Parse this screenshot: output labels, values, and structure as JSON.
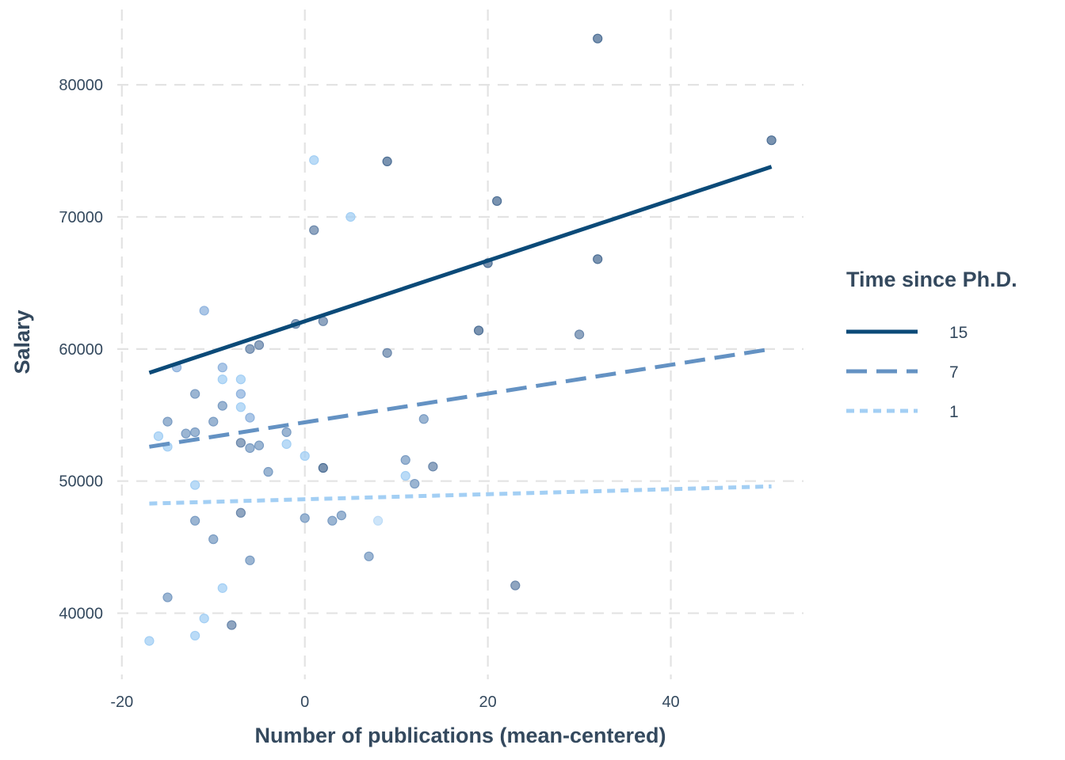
{
  "chart_data": {
    "type": "scatter",
    "title": "",
    "xlabel": "Number of publications (mean-centered)",
    "ylabel": "Salary",
    "xlim": [
      -20.5,
      54.5
    ],
    "ylim": [
      35000,
      85700
    ],
    "x_ticks": [
      -20,
      0,
      20,
      40
    ],
    "x_tick_labels": [
      "-20",
      "0",
      "20",
      "40"
    ],
    "y_ticks": [
      40000,
      50000,
      60000,
      70000,
      80000
    ],
    "y_tick_labels": [
      "40000",
      "50000",
      "60000",
      "70000",
      "80000"
    ],
    "grid": true,
    "legend": {
      "title": "Time since Ph.D.",
      "placement": "right",
      "entries": [
        {
          "label": "15",
          "color": "#0b4a78",
          "dash": "solid"
        },
        {
          "label": "7",
          "color": "#6492c3",
          "dash": "longdash"
        },
        {
          "label": "1",
          "color": "#a3cff4",
          "dash": "dotted"
        }
      ]
    },
    "lines": [
      {
        "name": "15",
        "color": "#0b4a78",
        "dash": "solid",
        "x": [
          -17,
          51
        ],
        "y": [
          58200,
          73800
        ]
      },
      {
        "name": "7",
        "color": "#6492c3",
        "dash": "longdash",
        "x": [
          -17,
          51
        ],
        "y": [
          52600,
          60000
        ]
      },
      {
        "name": "1",
        "color": "#a3cff4",
        "dash": "dotted",
        "x": [
          -17,
          51
        ],
        "y": [
          48300,
          49600
        ]
      }
    ],
    "points": [
      {
        "x": 32,
        "y": 83500,
        "color": "#4d6f95"
      },
      {
        "x": 51,
        "y": 75800,
        "color": "#4d6f95"
      },
      {
        "x": 9,
        "y": 74200,
        "color": "#4d6f95"
      },
      {
        "x": 21,
        "y": 71200,
        "color": "#4d6f95"
      },
      {
        "x": 32,
        "y": 66800,
        "color": "#4d6f95"
      },
      {
        "x": 20,
        "y": 66500,
        "color": "#4d6f95"
      },
      {
        "x": 19,
        "y": 61400,
        "color": "#4d6f95"
      },
      {
        "x": 2,
        "y": 51000,
        "color": "#4d6f95"
      },
      {
        "x": 1,
        "y": 69000,
        "color": "#6a87ab"
      },
      {
        "x": 30,
        "y": 61100,
        "color": "#6a87ab"
      },
      {
        "x": 9,
        "y": 59700,
        "color": "#6a87ab"
      },
      {
        "x": 2,
        "y": 62100,
        "color": "#6a87ab"
      },
      {
        "x": -1,
        "y": 61900,
        "color": "#6a87ab"
      },
      {
        "x": -6,
        "y": 60000,
        "color": "#6a87ab"
      },
      {
        "x": -5,
        "y": 60300,
        "color": "#6a87ab"
      },
      {
        "x": 14,
        "y": 51100,
        "color": "#6a87ab"
      },
      {
        "x": 23,
        "y": 42100,
        "color": "#6a87ab"
      },
      {
        "x": -7,
        "y": 52900,
        "color": "#6a87ab"
      },
      {
        "x": -7,
        "y": 47600,
        "color": "#6a87ab"
      },
      {
        "x": -8,
        "y": 39100,
        "color": "#6a87ab"
      },
      {
        "x": -6,
        "y": 52500,
        "color": "#7a9cc3"
      },
      {
        "x": -2,
        "y": 53700,
        "color": "#7a9cc3"
      },
      {
        "x": 13,
        "y": 54700,
        "color": "#7a9cc3"
      },
      {
        "x": 11,
        "y": 51600,
        "color": "#7a9cc3"
      },
      {
        "x": -12,
        "y": 56600,
        "color": "#7a9cc3"
      },
      {
        "x": -12,
        "y": 53700,
        "color": "#7a9cc3"
      },
      {
        "x": -9,
        "y": 55700,
        "color": "#7a9cc3"
      },
      {
        "x": -10,
        "y": 54500,
        "color": "#7a9cc3"
      },
      {
        "x": -13,
        "y": 53600,
        "color": "#7a9cc3"
      },
      {
        "x": -15,
        "y": 54500,
        "color": "#7a9cc3"
      },
      {
        "x": -5,
        "y": 52700,
        "color": "#7a9cc3"
      },
      {
        "x": -4,
        "y": 50700,
        "color": "#7a9cc3"
      },
      {
        "x": 12,
        "y": 49800,
        "color": "#7a9cc3"
      },
      {
        "x": 3,
        "y": 47000,
        "color": "#7a9cc3"
      },
      {
        "x": 4,
        "y": 47400,
        "color": "#7a9cc3"
      },
      {
        "x": 0,
        "y": 47200,
        "color": "#7a9cc3"
      },
      {
        "x": -12,
        "y": 47000,
        "color": "#7a9cc3"
      },
      {
        "x": -10,
        "y": 45600,
        "color": "#7a9cc3"
      },
      {
        "x": -6,
        "y": 44000,
        "color": "#7a9cc3"
      },
      {
        "x": 7,
        "y": 44300,
        "color": "#7a9cc3"
      },
      {
        "x": -15,
        "y": 41200,
        "color": "#7a9cc3"
      },
      {
        "x": -11,
        "y": 62900,
        "color": "#8fb3de"
      },
      {
        "x": -14,
        "y": 58600,
        "color": "#8fb3de"
      },
      {
        "x": -9,
        "y": 58600,
        "color": "#8fb3de"
      },
      {
        "x": -7,
        "y": 56600,
        "color": "#8fb3de"
      },
      {
        "x": -6,
        "y": 54800,
        "color": "#8fb3de"
      },
      {
        "x": 1,
        "y": 74300,
        "color": "#a3cff4"
      },
      {
        "x": 5,
        "y": 70000,
        "color": "#a3cff4"
      },
      {
        "x": -9,
        "y": 57700,
        "color": "#a3cff4"
      },
      {
        "x": -7,
        "y": 57700,
        "color": "#a3cff4"
      },
      {
        "x": -7,
        "y": 55600,
        "color": "#a3cff4"
      },
      {
        "x": -16,
        "y": 53400,
        "color": "#a3cff4"
      },
      {
        "x": -15,
        "y": 52600,
        "color": "#a3cff4"
      },
      {
        "x": -2,
        "y": 52800,
        "color": "#a3cff4"
      },
      {
        "x": 0,
        "y": 51900,
        "color": "#a3cff4"
      },
      {
        "x": 11,
        "y": 50400,
        "color": "#a3cff4"
      },
      {
        "x": -12,
        "y": 49700,
        "color": "#a3cff4"
      },
      {
        "x": 8,
        "y": 47000,
        "color": "#bddcf7"
      },
      {
        "x": -9,
        "y": 41900,
        "color": "#a3cff4"
      },
      {
        "x": -11,
        "y": 39600,
        "color": "#a3cff4"
      },
      {
        "x": -12,
        "y": 38300,
        "color": "#a3cff4"
      },
      {
        "x": -17,
        "y": 37900,
        "color": "#a3cff4"
      }
    ]
  }
}
